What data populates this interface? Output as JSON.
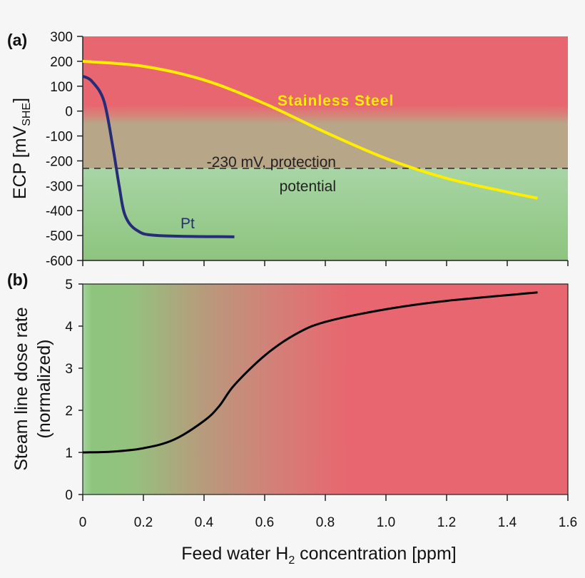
{
  "chart_data": [
    {
      "type": "line",
      "panel_label": "(a)",
      "ylabel": "ECP [mV",
      "ylabel_sub": "SHE",
      "ylabel_end": "]",
      "ylim": [
        -600,
        300
      ],
      "xlim": [
        0,
        1.6
      ],
      "yticks": [
        "300",
        "200",
        "100",
        "0",
        "-100",
        "-200",
        "-300",
        "-400",
        "-500",
        "-600"
      ],
      "ytick_values": [
        300,
        200,
        100,
        0,
        -100,
        -200,
        -300,
        -400,
        -500,
        -600
      ],
      "protection_potential": -230,
      "annotation_line1": "-230 mV, protection",
      "annotation_line2": "potential",
      "background": {
        "above": "#e8666f",
        "below_top": "#a8d5a5",
        "below_bottom": "#8dc47e"
      },
      "series": [
        {
          "name": "Stainless Steel",
          "color": "#ffee00",
          "x": [
            0,
            0.2,
            0.4,
            0.6,
            0.8,
            1.0,
            1.2,
            1.4,
            1.5
          ],
          "y": [
            200,
            180,
            125,
            30,
            -85,
            -190,
            -270,
            -325,
            -350
          ]
        },
        {
          "name": "Pt",
          "color": "#262c78",
          "x": [
            0,
            0.03,
            0.07,
            0.1,
            0.12,
            0.14,
            0.18,
            0.25,
            0.5
          ],
          "y": [
            140,
            120,
            40,
            -150,
            -300,
            -420,
            -480,
            -500,
            -505
          ]
        }
      ]
    },
    {
      "type": "line",
      "panel_label": "(b)",
      "ylabel_line1": "Steam line dose rate",
      "ylabel_line2": "(normalized)",
      "xlabel": "Feed water H",
      "xlabel_sub": "2",
      "xlabel_end": " concentration [ppm]",
      "ylim": [
        0,
        5
      ],
      "xlim": [
        0,
        1.6
      ],
      "yticks": [
        "0",
        "1",
        "2",
        "3",
        "4",
        "5"
      ],
      "xticks": [
        "0",
        "0.2",
        "0.4",
        "0.6",
        "0.8",
        "1.0",
        "1.2",
        "1.4",
        "1.6"
      ],
      "background": {
        "left": "#8dc47e",
        "right": "#e8666f"
      },
      "series": [
        {
          "color": "#000000",
          "x": [
            0,
            0.1,
            0.2,
            0.3,
            0.4,
            0.45,
            0.5,
            0.6,
            0.7,
            0.8,
            1.0,
            1.2,
            1.5
          ],
          "y": [
            1,
            1.02,
            1.1,
            1.3,
            1.75,
            2.1,
            2.6,
            3.3,
            3.8,
            4.1,
            4.4,
            4.6,
            4.8
          ]
        }
      ]
    }
  ]
}
